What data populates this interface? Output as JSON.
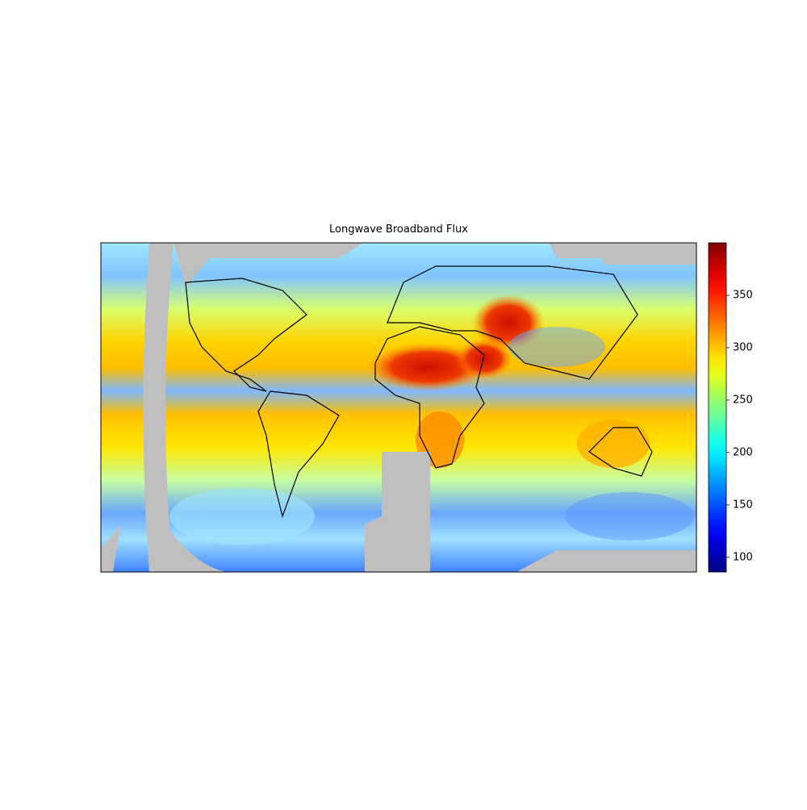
{
  "chart_data": {
    "type": "map",
    "title": "Longwave Broadband Flux",
    "colorbar": {
      "colormap": "jet",
      "lim": [
        86,
        400
      ],
      "ticks": [
        100,
        150,
        200,
        250,
        300,
        350
      ]
    }
  }
}
